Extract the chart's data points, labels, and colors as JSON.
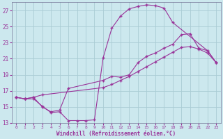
{
  "xlabel": "Windchill (Refroidissement éolien,°C)",
  "bg_color": "#cce8ee",
  "grid_color": "#aaccd4",
  "line_color": "#993399",
  "xlim": [
    -0.5,
    23.5
  ],
  "ylim": [
    13,
    28
  ],
  "xticks": [
    0,
    1,
    2,
    3,
    4,
    5,
    6,
    7,
    8,
    9,
    10,
    11,
    12,
    13,
    14,
    15,
    16,
    17,
    18,
    19,
    20,
    21,
    22,
    23
  ],
  "yticks": [
    13,
    15,
    17,
    19,
    21,
    23,
    25,
    27
  ],
  "line1_x": [
    0,
    1,
    2,
    3,
    4,
    5,
    6,
    7,
    8,
    9,
    10,
    11,
    12,
    13,
    14,
    15,
    16,
    17,
    18,
    22,
    23
  ],
  "line1_y": [
    16.2,
    16.0,
    16.0,
    15.1,
    14.3,
    14.4,
    13.3,
    13.3,
    13.3,
    13.4,
    21.1,
    24.8,
    26.3,
    27.2,
    27.5,
    27.7,
    27.6,
    27.3,
    25.5,
    22.0,
    20.5
  ],
  "line2_x": [
    0,
    1,
    2,
    3,
    4,
    5,
    6,
    10,
    11,
    12,
    13,
    14,
    15,
    16,
    17,
    18,
    19,
    20,
    21,
    22,
    23
  ],
  "line2_y": [
    16.2,
    16.0,
    16.2,
    15.0,
    14.4,
    14.6,
    17.3,
    18.3,
    18.8,
    18.7,
    19.0,
    20.5,
    21.3,
    21.7,
    22.3,
    22.8,
    24.0,
    24.1,
    22.3,
    22.0,
    20.5
  ],
  "line3_x": [
    0,
    1,
    2,
    3,
    10,
    11,
    12,
    13,
    14,
    15,
    16,
    17,
    18,
    19,
    20,
    21,
    22,
    23
  ],
  "line3_y": [
    16.2,
    16.0,
    16.2,
    16.5,
    17.4,
    17.8,
    18.3,
    18.8,
    19.4,
    20.0,
    20.6,
    21.2,
    21.8,
    22.4,
    22.5,
    22.2,
    21.7,
    20.5
  ]
}
